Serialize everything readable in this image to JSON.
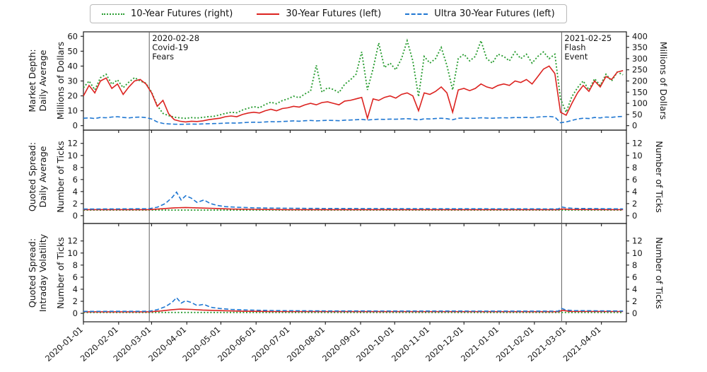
{
  "legend": {
    "items": [
      {
        "label": "10-Year Futures (right)",
        "color": "#2a9d32",
        "dash": "dotted"
      },
      {
        "label": "30-Year Futures (left)",
        "color": "#dc2320",
        "dash": "solid"
      },
      {
        "label": "Ultra 30-Year Futures (left)",
        "color": "#1f77d2",
        "dash": "dashed"
      }
    ]
  },
  "colors": {
    "ten_year": "#2a9d32",
    "thirty_year": "#dc2320",
    "ultra_thirty": "#1f77d2",
    "event_line": "#6e6e6e",
    "axis": "#1a1a1a"
  },
  "annotations": [
    {
      "day": 58,
      "lines": [
        "2020-02-28",
        "Covid-19",
        "Fears"
      ]
    },
    {
      "day": 421,
      "lines": [
        "2021-02-25",
        "Flash",
        "Event"
      ]
    }
  ],
  "x_axis": {
    "domain_days": [
      0,
      478
    ],
    "tick_days": [
      0,
      31,
      60,
      91,
      121,
      152,
      182,
      213,
      244,
      274,
      305,
      335,
      366,
      397,
      425,
      456
    ],
    "tick_labels": [
      "2020-01-01",
      "2020-02-01",
      "2020-03-01",
      "2020-04-01",
      "2020-05-01",
      "2020-06-01",
      "2020-07-01",
      "2020-08-01",
      "2020-09-01",
      "2020-10-01",
      "2020-11-01",
      "2020-12-01",
      "2021-01-01",
      "2021-02-01",
      "2021-03-01",
      "2021-04-01"
    ]
  },
  "labels": {
    "panel1_outer": "Market Depth:\nDaily Average",
    "panel1_inner": "Millions of Dollars",
    "panel1_right": "Millions of Dollars",
    "panel2_outer": "Quoted Spread:\nDaily Average",
    "panel2_inner": "Number of Ticks",
    "panel2_right": "Number of Ticks",
    "panel3_outer": "Quoted Spread:\nIntraday Volatility",
    "panel3_inner": "Number of Ticks",
    "panel3_right": "Number of Ticks"
  },
  "chart_data": [
    {
      "type": "line",
      "title": "Market Depth: Daily Average",
      "ylabel_left": "Millions of Dollars",
      "ylabel_right": "Millions of Dollars",
      "left_ticks": [
        0,
        10,
        20,
        30,
        40,
        50,
        60
      ],
      "right_ticks": [
        0,
        50,
        100,
        150,
        200,
        250,
        300,
        350,
        400
      ],
      "left_ylim": [
        -3,
        63
      ],
      "right_ylim": [
        -20,
        420
      ],
      "x_days": [
        0,
        5,
        10,
        15,
        20,
        25,
        30,
        35,
        40,
        45,
        50,
        55,
        60,
        65,
        70,
        75,
        80,
        85,
        90,
        95,
        100,
        105,
        110,
        115,
        120,
        125,
        130,
        135,
        140,
        145,
        150,
        155,
        160,
        165,
        170,
        175,
        180,
        185,
        190,
        195,
        200,
        205,
        210,
        215,
        220,
        225,
        230,
        235,
        240,
        245,
        250,
        255,
        260,
        265,
        270,
        275,
        280,
        285,
        290,
        295,
        300,
        305,
        310,
        315,
        320,
        325,
        330,
        335,
        340,
        345,
        350,
        355,
        360,
        365,
        370,
        375,
        380,
        385,
        390,
        395,
        400,
        405,
        410,
        415,
        420,
        425,
        430,
        435,
        440,
        445,
        450,
        455,
        460,
        465,
        470,
        475
      ],
      "series": [
        {
          "name": "10-Year Futures",
          "axis": "right",
          "dash": "dotted",
          "color_key": "ten_year",
          "values": [
            170,
            200,
            160,
            215,
            230,
            185,
            205,
            170,
            195,
            215,
            200,
            190,
            150,
            90,
            55,
            45,
            38,
            35,
            33,
            36,
            34,
            37,
            40,
            42,
            48,
            55,
            60,
            58,
            70,
            78,
            85,
            80,
            95,
            105,
            98,
            112,
            120,
            132,
            125,
            142,
            155,
            270,
            150,
            170,
            162,
            148,
            185,
            205,
            230,
            330,
            160,
            255,
            370,
            260,
            280,
            250,
            300,
            380,
            290,
            130,
            310,
            280,
            300,
            350,
            270,
            160,
            300,
            320,
            290,
            310,
            380,
            300,
            280,
            320,
            310,
            290,
            330,
            300,
            320,
            280,
            310,
            330,
            300,
            320,
            120,
            60,
            130,
            170,
            200,
            160,
            210,
            180,
            230,
            200,
            240,
            228
          ]
        },
        {
          "name": "30-Year Futures",
          "axis": "left",
          "dash": "solid",
          "color_key": "thirty_year",
          "values": [
            20,
            27,
            22,
            30,
            32,
            25,
            28,
            21,
            26,
            30,
            31,
            28,
            22,
            13,
            17,
            8,
            4,
            3,
            2.5,
            3,
            2.8,
            3.2,
            4,
            4.5,
            5,
            6,
            6.5,
            6,
            7.5,
            8.5,
            9,
            8.5,
            10,
            11,
            10,
            11.5,
            12,
            13,
            12.5,
            14,
            15,
            14,
            15.5,
            16,
            15,
            14,
            16.5,
            17,
            18,
            19,
            5,
            18,
            17,
            19,
            20,
            18.5,
            21,
            22,
            20,
            10,
            22,
            21,
            23,
            26,
            22,
            9,
            24,
            25,
            23.5,
            25,
            28,
            26,
            25,
            27,
            28,
            27,
            30,
            29,
            31,
            28,
            33,
            38,
            40,
            35,
            9,
            7,
            15,
            22,
            27,
            23,
            30,
            26,
            33,
            31,
            36,
            37
          ]
        },
        {
          "name": "Ultra 30-Year Futures",
          "axis": "left",
          "dash": "dashed",
          "color_key": "ultra_thirty",
          "values": [
            5,
            5.2,
            4.8,
            5.5,
            5.3,
            5.8,
            6,
            5.5,
            5.2,
            5.6,
            5.8,
            5.4,
            4.5,
            2.5,
            1.5,
            1.2,
            1.0,
            0.9,
            1.0,
            1.1,
            1.0,
            1.2,
            1.3,
            1.4,
            1.5,
            1.7,
            1.8,
            1.7,
            2.0,
            2.2,
            2.3,
            2.2,
            2.5,
            2.7,
            2.6,
            2.8,
            3.0,
            3.2,
            3.0,
            3.3,
            3.5,
            3.2,
            3.4,
            3.6,
            3.5,
            3.3,
            3.7,
            3.8,
            4.0,
            4.2,
            3.8,
            4.1,
            4.3,
            4.2,
            4.4,
            4.3,
            4.5,
            4.7,
            4.4,
            3.8,
            4.6,
            4.5,
            4.8,
            5.0,
            4.7,
            4.0,
            5.0,
            5.1,
            4.9,
            5.0,
            5.3,
            5.1,
            5.0,
            5.2,
            5.3,
            5.2,
            5.5,
            5.4,
            5.6,
            5.3,
            5.8,
            6.0,
            6.2,
            5.8,
            2.0,
            2.5,
            3.5,
            4.5,
            5.0,
            4.8,
            5.5,
            5.2,
            5.8,
            5.6,
            6.0,
            6.2
          ]
        }
      ]
    },
    {
      "type": "line",
      "title": "Quoted Spread: Daily Average",
      "ylabel_left": "Number of Ticks",
      "ylabel_right": "Number of Ticks",
      "left_ticks": [
        0,
        2,
        4,
        6,
        8,
        10,
        12
      ],
      "right_ticks": [
        0,
        2,
        4,
        6,
        8,
        10,
        12
      ],
      "left_ylim": [
        -1.3,
        14.2
      ],
      "right_ylim": [
        -1.3,
        14.2
      ],
      "series": [
        {
          "name": "10-Year Futures",
          "axis": "left",
          "dash": "dotted",
          "color_key": "ten_year",
          "points": [
            [
              0,
              0.92
            ],
            [
              475,
              0.92
            ]
          ]
        },
        {
          "name": "30-Year Futures",
          "axis": "left",
          "dash": "solid",
          "color_key": "thirty_year",
          "points": [
            [
              0,
              1.0
            ],
            [
              58,
              1.0
            ],
            [
              70,
              1.15
            ],
            [
              80,
              1.3
            ],
            [
              90,
              1.35
            ],
            [
              100,
              1.3
            ],
            [
              115,
              1.2
            ],
            [
              130,
              1.1
            ],
            [
              150,
              1.05
            ],
            [
              180,
              1.0
            ],
            [
              418,
              1.0
            ],
            [
              422,
              1.12
            ],
            [
              428,
              1.02
            ],
            [
              475,
              1.0
            ]
          ]
        },
        {
          "name": "Ultra 30-Year Futures",
          "axis": "left",
          "dash": "dashed",
          "color_key": "ultra_thirty",
          "points": [
            [
              0,
              1.1
            ],
            [
              30,
              1.12
            ],
            [
              58,
              1.15
            ],
            [
              65,
              1.4
            ],
            [
              72,
              2.0
            ],
            [
              78,
              3.0
            ],
            [
              82,
              3.9
            ],
            [
              86,
              2.6
            ],
            [
              90,
              3.3
            ],
            [
              95,
              2.9
            ],
            [
              100,
              2.2
            ],
            [
              106,
              2.6
            ],
            [
              112,
              2.0
            ],
            [
              118,
              1.7
            ],
            [
              125,
              1.5
            ],
            [
              135,
              1.4
            ],
            [
              150,
              1.3
            ],
            [
              170,
              1.25
            ],
            [
              200,
              1.2
            ],
            [
              250,
              1.18
            ],
            [
              300,
              1.15
            ],
            [
              418,
              1.12
            ],
            [
              421,
              1.45
            ],
            [
              425,
              1.3
            ],
            [
              432,
              1.2
            ],
            [
              475,
              1.12
            ]
          ]
        }
      ]
    },
    {
      "type": "line",
      "title": "Quoted Spread: Intraday Volatility",
      "ylabel_left": "Number of Ticks",
      "ylabel_right": "Number of Ticks",
      "left_ticks": [
        0,
        2,
        4,
        6,
        8,
        10,
        12
      ],
      "right_ticks": [
        0,
        2,
        4,
        6,
        8,
        10,
        12
      ],
      "left_ylim": [
        -1.4,
        14.9
      ],
      "right_ylim": [
        -1.4,
        14.9
      ],
      "series": [
        {
          "name": "10-Year Futures",
          "axis": "left",
          "dash": "dotted",
          "color_key": "ten_year",
          "points": [
            [
              0,
              0.15
            ],
            [
              475,
              0.15
            ]
          ]
        },
        {
          "name": "30-Year Futures",
          "axis": "left",
          "dash": "solid",
          "color_key": "thirty_year",
          "points": [
            [
              0,
              0.25
            ],
            [
              58,
              0.25
            ],
            [
              68,
              0.4
            ],
            [
              78,
              0.6
            ],
            [
              85,
              0.7
            ],
            [
              95,
              0.65
            ],
            [
              105,
              0.55
            ],
            [
              120,
              0.45
            ],
            [
              140,
              0.35
            ],
            [
              170,
              0.3
            ],
            [
              418,
              0.28
            ],
            [
              422,
              0.5
            ],
            [
              428,
              0.32
            ],
            [
              475,
              0.3
            ]
          ]
        },
        {
          "name": "Ultra 30-Year Futures",
          "axis": "left",
          "dash": "dashed",
          "color_key": "ultra_thirty",
          "points": [
            [
              0,
              0.32
            ],
            [
              58,
              0.35
            ],
            [
              65,
              0.6
            ],
            [
              72,
              1.1
            ],
            [
              78,
              1.8
            ],
            [
              82,
              2.6
            ],
            [
              86,
              1.7
            ],
            [
              90,
              2.1
            ],
            [
              95,
              1.8
            ],
            [
              100,
              1.3
            ],
            [
              106,
              1.5
            ],
            [
              112,
              1.0
            ],
            [
              120,
              0.8
            ],
            [
              130,
              0.65
            ],
            [
              145,
              0.55
            ],
            [
              170,
              0.45
            ],
            [
              220,
              0.4
            ],
            [
              300,
              0.38
            ],
            [
              418,
              0.36
            ],
            [
              421,
              0.8
            ],
            [
              425,
              0.55
            ],
            [
              432,
              0.45
            ],
            [
              475,
              0.38
            ]
          ]
        }
      ]
    }
  ]
}
